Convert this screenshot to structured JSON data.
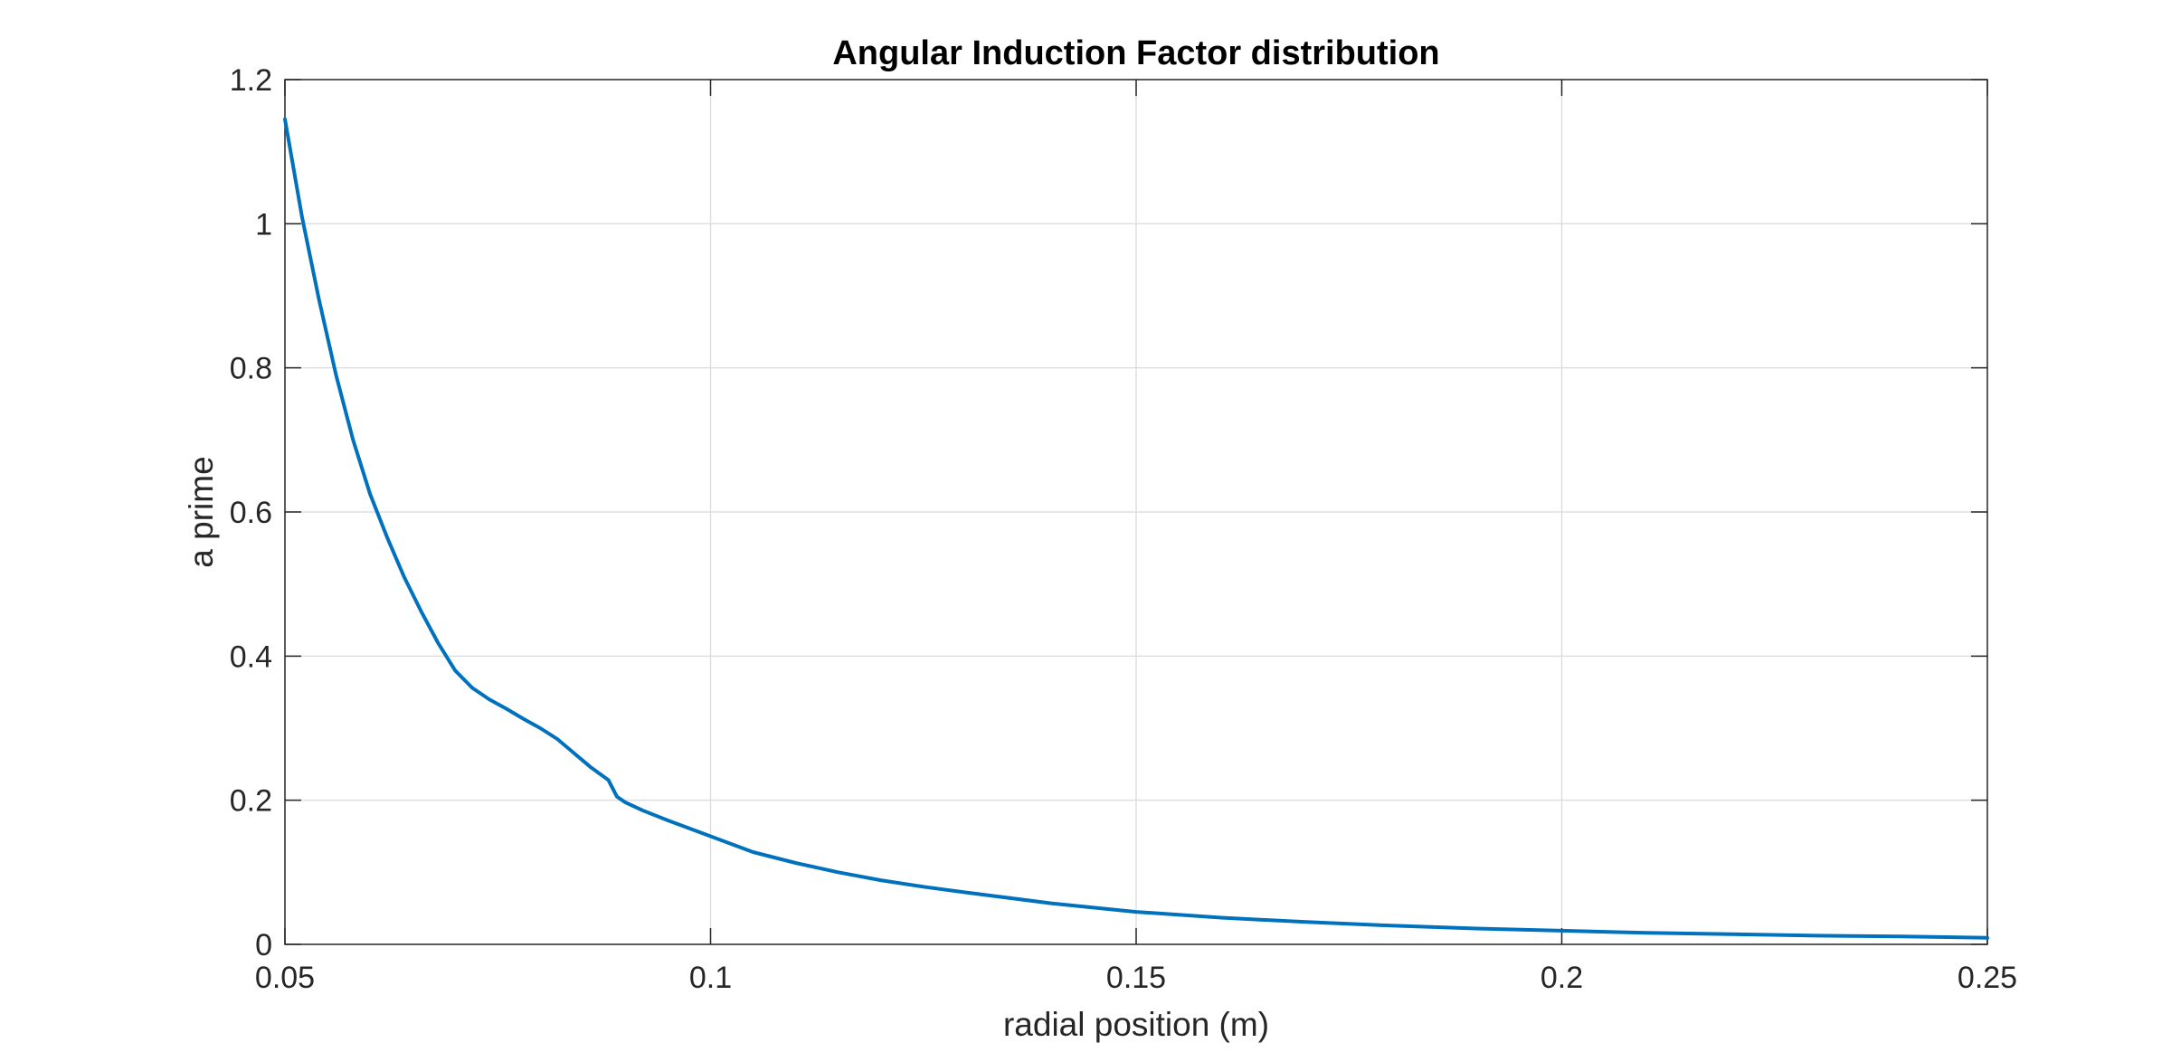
{
  "chart_data": {
    "type": "line",
    "title": "Angular Induction Factor distribution",
    "xlabel": "radial position (m)",
    "ylabel": "a prime",
    "xlim": [
      0.05,
      0.25
    ],
    "ylim": [
      0,
      1.2
    ],
    "xticks": [
      0.05,
      0.1,
      0.15,
      0.2,
      0.25
    ],
    "xtick_labels": [
      "0.05",
      "0.1",
      "0.15",
      "0.2",
      "0.25"
    ],
    "yticks": [
      0,
      0.2,
      0.4,
      0.6,
      0.8,
      1,
      1.2
    ],
    "ytick_labels": [
      "0",
      "0.2",
      "0.4",
      "0.6",
      "0.8",
      "1",
      "1.2"
    ],
    "grid": true,
    "series_color": "#0072bd",
    "series": [
      {
        "x": [
          0.05,
          0.052,
          0.054,
          0.056,
          0.058,
          0.06,
          0.062,
          0.064,
          0.066,
          0.068,
          0.07,
          0.072,
          0.074,
          0.076,
          0.078,
          0.08,
          0.082,
          0.084,
          0.086,
          0.088,
          0.089,
          0.09,
          0.092,
          0.095,
          0.1,
          0.105,
          0.11,
          0.115,
          0.12,
          0.125,
          0.13,
          0.14,
          0.15,
          0.16,
          0.17,
          0.18,
          0.19,
          0.2,
          0.21,
          0.22,
          0.23,
          0.24,
          0.25
        ],
        "y": [
          1.145,
          1.01,
          0.895,
          0.79,
          0.7,
          0.625,
          0.565,
          0.51,
          0.462,
          0.418,
          0.38,
          0.356,
          0.34,
          0.327,
          0.313,
          0.3,
          0.285,
          0.265,
          0.245,
          0.228,
          0.205,
          0.197,
          0.186,
          0.172,
          0.15,
          0.128,
          0.113,
          0.1,
          0.089,
          0.08,
          0.072,
          0.057,
          0.045,
          0.037,
          0.031,
          0.026,
          0.022,
          0.019,
          0.016,
          0.014,
          0.012,
          0.011,
          0.009
        ]
      }
    ]
  }
}
